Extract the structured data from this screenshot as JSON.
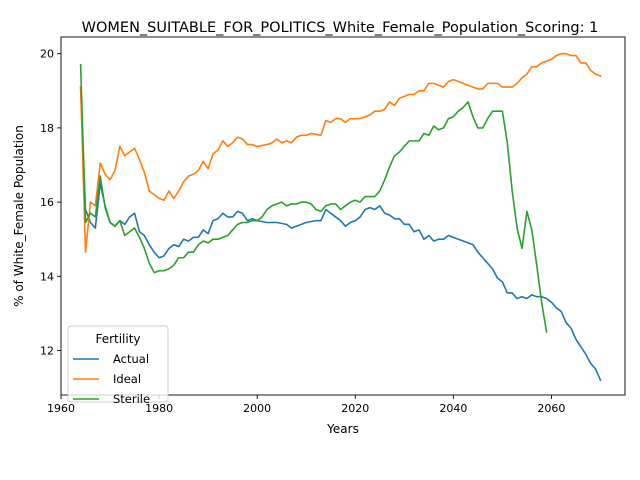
{
  "chart_data": {
    "type": "line",
    "title": "WOMEN_SUITABLE_FOR_POLITICS_White_Female_Population_Scoring: 1",
    "xlabel": "Years",
    "ylabel": "% of White_Female Population",
    "xlim": [
      1960,
      2075
    ],
    "ylim": [
      10.8,
      20.45
    ],
    "x_ticks": [
      1960,
      1980,
      2000,
      2020,
      2040,
      2060
    ],
    "y_ticks": [
      12,
      14,
      16,
      18,
      20
    ],
    "grid": false,
    "legend": {
      "title": "Fertility",
      "placement": "lower-left"
    },
    "series": [
      {
        "name": "Actual",
        "color": "#1f77b4",
        "points": [
          [
            1964,
            19.1
          ],
          [
            1965,
            15.8
          ],
          [
            1966,
            15.45
          ],
          [
            1967,
            15.3
          ],
          [
            1968,
            16.5
          ],
          [
            1969,
            15.9
          ],
          [
            1970,
            15.45
          ],
          [
            1971,
            15.35
          ],
          [
            1972,
            15.5
          ],
          [
            1973,
            15.4
          ],
          [
            1974,
            15.6
          ],
          [
            1975,
            15.7
          ],
          [
            1976,
            15.2
          ],
          [
            1977,
            15.1
          ],
          [
            1978,
            14.85
          ],
          [
            1979,
            14.65
          ],
          [
            1980,
            14.5
          ],
          [
            1981,
            14.55
          ],
          [
            1982,
            14.75
          ],
          [
            1983,
            14.85
          ],
          [
            1984,
            14.8
          ],
          [
            1985,
            15.0
          ],
          [
            1986,
            14.95
          ],
          [
            1987,
            15.05
          ],
          [
            1988,
            15.05
          ],
          [
            1989,
            15.25
          ],
          [
            1990,
            15.15
          ],
          [
            1991,
            15.5
          ],
          [
            1992,
            15.55
          ],
          [
            1993,
            15.7
          ],
          [
            1994,
            15.6
          ],
          [
            1995,
            15.6
          ],
          [
            1996,
            15.75
          ],
          [
            1997,
            15.7
          ],
          [
            1998,
            15.5
          ],
          [
            1999,
            15.55
          ],
          [
            2000,
            15.5
          ],
          [
            2002,
            15.45
          ],
          [
            2004,
            15.45
          ],
          [
            2006,
            15.4
          ],
          [
            2007,
            15.3
          ],
          [
            2008,
            15.35
          ],
          [
            2010,
            15.45
          ],
          [
            2012,
            15.5
          ],
          [
            2013,
            15.5
          ],
          [
            2014,
            15.8
          ],
          [
            2015,
            15.7
          ],
          [
            2016,
            15.6
          ],
          [
            2017,
            15.5
          ],
          [
            2018,
            15.35
          ],
          [
            2019,
            15.45
          ],
          [
            2020,
            15.5
          ],
          [
            2021,
            15.6
          ],
          [
            2022,
            15.8
          ],
          [
            2023,
            15.85
          ],
          [
            2024,
            15.8
          ],
          [
            2025,
            15.9
          ],
          [
            2026,
            15.7
          ],
          [
            2027,
            15.65
          ],
          [
            2028,
            15.55
          ],
          [
            2029,
            15.55
          ],
          [
            2030,
            15.4
          ],
          [
            2031,
            15.4
          ],
          [
            2032,
            15.2
          ],
          [
            2033,
            15.25
          ],
          [
            2034,
            15.0
          ],
          [
            2035,
            15.1
          ],
          [
            2036,
            14.95
          ],
          [
            2037,
            15.0
          ],
          [
            2038,
            15.0
          ],
          [
            2039,
            15.1
          ],
          [
            2040,
            15.05
          ],
          [
            2041,
            15.0
          ],
          [
            2042,
            14.95
          ],
          [
            2043,
            14.9
          ],
          [
            2044,
            14.85
          ],
          [
            2045,
            14.65
          ],
          [
            2046,
            14.5
          ],
          [
            2047,
            14.35
          ],
          [
            2048,
            14.2
          ],
          [
            2049,
            13.95
          ],
          [
            2050,
            13.85
          ],
          [
            2051,
            13.55
          ],
          [
            2052,
            13.55
          ],
          [
            2053,
            13.4
          ],
          [
            2054,
            13.45
          ],
          [
            2055,
            13.4
          ],
          [
            2056,
            13.5
          ],
          [
            2057,
            13.45
          ],
          [
            2058,
            13.45
          ],
          [
            2059,
            13.4
          ],
          [
            2060,
            13.3
          ],
          [
            2061,
            13.15
          ],
          [
            2062,
            13.05
          ],
          [
            2063,
            12.75
          ],
          [
            2064,
            12.6
          ],
          [
            2065,
            12.3
          ],
          [
            2066,
            12.1
          ],
          [
            2067,
            11.9
          ],
          [
            2068,
            11.65
          ],
          [
            2069,
            11.5
          ],
          [
            2070,
            11.2
          ]
        ]
      },
      {
        "name": "Ideal",
        "color": "#ff7f0e",
        "points": [
          [
            1964,
            19.1
          ],
          [
            1965,
            14.65
          ],
          [
            1966,
            16.0
          ],
          [
            1967,
            15.9
          ],
          [
            1968,
            17.05
          ],
          [
            1969,
            16.75
          ],
          [
            1970,
            16.6
          ],
          [
            1971,
            16.85
          ],
          [
            1972,
            17.5
          ],
          [
            1973,
            17.25
          ],
          [
            1974,
            17.35
          ],
          [
            1975,
            17.45
          ],
          [
            1976,
            17.15
          ],
          [
            1977,
            16.8
          ],
          [
            1978,
            16.3
          ],
          [
            1979,
            16.2
          ],
          [
            1980,
            16.1
          ],
          [
            1981,
            16.05
          ],
          [
            1982,
            16.3
          ],
          [
            1983,
            16.1
          ],
          [
            1984,
            16.3
          ],
          [
            1985,
            16.55
          ],
          [
            1986,
            16.7
          ],
          [
            1987,
            16.75
          ],
          [
            1988,
            16.85
          ],
          [
            1989,
            17.1
          ],
          [
            1990,
            16.9
          ],
          [
            1991,
            17.3
          ],
          [
            1992,
            17.4
          ],
          [
            1993,
            17.65
          ],
          [
            1994,
            17.5
          ],
          [
            1995,
            17.6
          ],
          [
            1996,
            17.75
          ],
          [
            1997,
            17.7
          ],
          [
            1998,
            17.55
          ],
          [
            1999,
            17.55
          ],
          [
            2000,
            17.5
          ],
          [
            2002,
            17.55
          ],
          [
            2003,
            17.6
          ],
          [
            2004,
            17.7
          ],
          [
            2005,
            17.6
          ],
          [
            2006,
            17.65
          ],
          [
            2007,
            17.6
          ],
          [
            2008,
            17.75
          ],
          [
            2009,
            17.8
          ],
          [
            2010,
            17.8
          ],
          [
            2011,
            17.85
          ],
          [
            2013,
            17.8
          ],
          [
            2014,
            18.2
          ],
          [
            2015,
            18.15
          ],
          [
            2016,
            18.25
          ],
          [
            2017,
            18.25
          ],
          [
            2018,
            18.15
          ],
          [
            2019,
            18.25
          ],
          [
            2020,
            18.25
          ],
          [
            2021,
            18.25
          ],
          [
            2022,
            18.3
          ],
          [
            2023,
            18.35
          ],
          [
            2024,
            18.45
          ],
          [
            2025,
            18.45
          ],
          [
            2026,
            18.5
          ],
          [
            2027,
            18.7
          ],
          [
            2028,
            18.6
          ],
          [
            2029,
            18.8
          ],
          [
            2030,
            18.85
          ],
          [
            2031,
            18.9
          ],
          [
            2032,
            18.9
          ],
          [
            2033,
            19.0
          ],
          [
            2034,
            19.0
          ],
          [
            2035,
            19.2
          ],
          [
            2036,
            19.2
          ],
          [
            2037,
            19.15
          ],
          [
            2038,
            19.1
          ],
          [
            2039,
            19.25
          ],
          [
            2040,
            19.3
          ],
          [
            2041,
            19.25
          ],
          [
            2042,
            19.2
          ],
          [
            2043,
            19.15
          ],
          [
            2044,
            19.1
          ],
          [
            2045,
            19.05
          ],
          [
            2046,
            19.05
          ],
          [
            2047,
            19.2
          ],
          [
            2048,
            19.2
          ],
          [
            2049,
            19.2
          ],
          [
            2050,
            19.1
          ],
          [
            2051,
            19.1
          ],
          [
            2052,
            19.1
          ],
          [
            2053,
            19.2
          ],
          [
            2054,
            19.35
          ],
          [
            2055,
            19.45
          ],
          [
            2056,
            19.65
          ],
          [
            2057,
            19.65
          ],
          [
            2058,
            19.75
          ],
          [
            2059,
            19.8
          ],
          [
            2060,
            19.85
          ],
          [
            2061,
            19.95
          ],
          [
            2062,
            20.0
          ],
          [
            2063,
            20.0
          ],
          [
            2064,
            19.95
          ],
          [
            2065,
            19.95
          ],
          [
            2066,
            19.75
          ],
          [
            2067,
            19.75
          ],
          [
            2068,
            19.55
          ],
          [
            2069,
            19.45
          ],
          [
            2070,
            19.4
          ]
        ]
      },
      {
        "name": "Sterile",
        "color": "#2ca02c",
        "points": [
          [
            1964,
            19.7
          ],
          [
            1965,
            15.45
          ],
          [
            1966,
            15.7
          ],
          [
            1967,
            15.6
          ],
          [
            1968,
            16.7
          ],
          [
            1969,
            15.85
          ],
          [
            1970,
            15.45
          ],
          [
            1971,
            15.35
          ],
          [
            1972,
            15.5
          ],
          [
            1973,
            15.1
          ],
          [
            1974,
            15.2
          ],
          [
            1975,
            15.3
          ],
          [
            1976,
            15.05
          ],
          [
            1977,
            14.75
          ],
          [
            1978,
            14.35
          ],
          [
            1979,
            14.1
          ],
          [
            1980,
            14.15
          ],
          [
            1981,
            14.15
          ],
          [
            1982,
            14.2
          ],
          [
            1983,
            14.3
          ],
          [
            1984,
            14.5
          ],
          [
            1985,
            14.5
          ],
          [
            1986,
            14.65
          ],
          [
            1987,
            14.65
          ],
          [
            1988,
            14.85
          ],
          [
            1989,
            14.95
          ],
          [
            1990,
            14.9
          ],
          [
            1991,
            15.0
          ],
          [
            1992,
            15.0
          ],
          [
            1993,
            15.05
          ],
          [
            1994,
            15.1
          ],
          [
            1995,
            15.25
          ],
          [
            1996,
            15.4
          ],
          [
            1997,
            15.45
          ],
          [
            1998,
            15.45
          ],
          [
            1999,
            15.5
          ],
          [
            2000,
            15.5
          ],
          [
            2001,
            15.6
          ],
          [
            2002,
            15.8
          ],
          [
            2003,
            15.9
          ],
          [
            2004,
            15.95
          ],
          [
            2005,
            16.0
          ],
          [
            2006,
            15.9
          ],
          [
            2007,
            15.95
          ],
          [
            2008,
            15.95
          ],
          [
            2009,
            16.0
          ],
          [
            2010,
            16.0
          ],
          [
            2011,
            15.95
          ],
          [
            2012,
            15.8
          ],
          [
            2013,
            15.75
          ],
          [
            2014,
            15.9
          ],
          [
            2015,
            15.95
          ],
          [
            2016,
            15.95
          ],
          [
            2017,
            15.8
          ],
          [
            2018,
            15.9
          ],
          [
            2019,
            16.0
          ],
          [
            2020,
            16.05
          ],
          [
            2021,
            16.0
          ],
          [
            2022,
            16.15
          ],
          [
            2023,
            16.15
          ],
          [
            2024,
            16.15
          ],
          [
            2025,
            16.3
          ],
          [
            2026,
            16.6
          ],
          [
            2027,
            16.95
          ],
          [
            2028,
            17.25
          ],
          [
            2029,
            17.35
          ],
          [
            2030,
            17.5
          ],
          [
            2031,
            17.65
          ],
          [
            2032,
            17.65
          ],
          [
            2033,
            17.65
          ],
          [
            2034,
            17.85
          ],
          [
            2035,
            17.8
          ],
          [
            2036,
            18.05
          ],
          [
            2037,
            17.95
          ],
          [
            2038,
            18.0
          ],
          [
            2039,
            18.25
          ],
          [
            2040,
            18.3
          ],
          [
            2041,
            18.45
          ],
          [
            2042,
            18.55
          ],
          [
            2043,
            18.7
          ],
          [
            2044,
            18.3
          ],
          [
            2045,
            18.0
          ],
          [
            2046,
            18.0
          ],
          [
            2047,
            18.25
          ],
          [
            2048,
            18.45
          ],
          [
            2049,
            18.45
          ],
          [
            2050,
            18.45
          ],
          [
            2051,
            17.6
          ],
          [
            2052,
            16.3
          ],
          [
            2053,
            15.3
          ],
          [
            2054,
            14.75
          ],
          [
            2055,
            15.75
          ],
          [
            2056,
            15.25
          ],
          [
            2057,
            14.3
          ],
          [
            2058,
            13.3
          ],
          [
            2059,
            12.5
          ]
        ]
      }
    ]
  }
}
